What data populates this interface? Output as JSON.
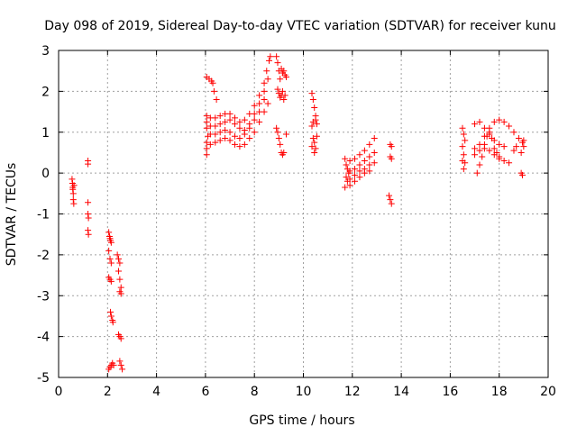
{
  "chart_data": {
    "type": "scatter",
    "title": "Day 098 of 2019, Sidereal Day-to-day VTEC variation (SDTVAR) for receiver kunu",
    "xlabel": "GPS time / hours",
    "ylabel": "SDTVAR / TECUs",
    "xlim": [
      0,
      20
    ],
    "ylim": [
      -5,
      3
    ],
    "xticks": [
      "0",
      "2",
      "4",
      "6",
      "8",
      "10",
      "12",
      "14",
      "16",
      "18",
      "20"
    ],
    "yticks": [
      "-5",
      "-4",
      "-3",
      "-2",
      "-1",
      "0",
      "1",
      "2",
      "3"
    ],
    "grid": true,
    "marker": "plus",
    "color": "#ff0000",
    "series": [
      {
        "name": "SDTVAR",
        "points": [
          [
            0.55,
            -0.15
          ],
          [
            0.57,
            -0.25
          ],
          [
            0.58,
            -0.35
          ],
          [
            0.6,
            -0.5
          ],
          [
            0.6,
            -0.65
          ],
          [
            0.62,
            -0.75
          ],
          [
            0.63,
            -0.3
          ],
          [
            0.58,
            -0.4
          ],
          [
            1.2,
            0.3
          ],
          [
            1.2,
            0.22
          ],
          [
            1.2,
            -0.72
          ],
          [
            1.2,
            -1.0
          ],
          [
            1.22,
            -1.1
          ],
          [
            1.2,
            -1.4
          ],
          [
            1.22,
            -1.5
          ],
          [
            2.05,
            -1.45
          ],
          [
            2.08,
            -1.55
          ],
          [
            2.1,
            -1.6
          ],
          [
            2.12,
            -1.65
          ],
          [
            2.15,
            -1.7
          ],
          [
            2.05,
            -1.9
          ],
          [
            2.1,
            -2.1
          ],
          [
            2.15,
            -2.2
          ],
          [
            2.05,
            -2.55
          ],
          [
            2.1,
            -2.6
          ],
          [
            2.15,
            -2.65
          ],
          [
            2.12,
            -3.4
          ],
          [
            2.15,
            -3.5
          ],
          [
            2.2,
            -3.6
          ],
          [
            2.22,
            -3.65
          ],
          [
            2.05,
            -4.8
          ],
          [
            2.1,
            -4.75
          ],
          [
            2.15,
            -4.7
          ],
          [
            2.2,
            -4.65
          ],
          [
            2.25,
            -4.7
          ],
          [
            2.4,
            -2.0
          ],
          [
            2.45,
            -2.1
          ],
          [
            2.5,
            -2.2
          ],
          [
            2.45,
            -2.4
          ],
          [
            2.5,
            -2.6
          ],
          [
            2.55,
            -2.8
          ],
          [
            2.5,
            -2.9
          ],
          [
            2.55,
            -2.95
          ],
          [
            2.45,
            -3.95
          ],
          [
            2.5,
            -4.0
          ],
          [
            2.55,
            -4.05
          ],
          [
            2.5,
            -4.6
          ],
          [
            2.55,
            -4.7
          ],
          [
            2.6,
            -4.8
          ],
          [
            6.05,
            2.35
          ],
          [
            6.15,
            2.3
          ],
          [
            6.25,
            2.25
          ],
          [
            6.3,
            2.2
          ],
          [
            6.35,
            2.0
          ],
          [
            6.45,
            1.8
          ],
          [
            6.05,
            1.4
          ],
          [
            6.05,
            1.25
          ],
          [
            6.05,
            1.1
          ],
          [
            6.1,
            0.9
          ],
          [
            6.05,
            0.75
          ],
          [
            6.05,
            0.6
          ],
          [
            6.05,
            0.45
          ],
          [
            6.2,
            1.35
          ],
          [
            6.4,
            1.35
          ],
          [
            6.6,
            1.4
          ],
          [
            6.8,
            1.45
          ],
          [
            7.0,
            1.45
          ],
          [
            7.2,
            1.35
          ],
          [
            7.4,
            1.25
          ],
          [
            7.6,
            1.3
          ],
          [
            7.8,
            1.45
          ],
          [
            8.0,
            1.65
          ],
          [
            8.2,
            1.9
          ],
          [
            8.4,
            2.2
          ],
          [
            8.5,
            2.5
          ],
          [
            8.6,
            2.75
          ],
          [
            8.65,
            2.85
          ],
          [
            6.2,
            1.15
          ],
          [
            6.4,
            1.15
          ],
          [
            6.6,
            1.2
          ],
          [
            6.8,
            1.25
          ],
          [
            7.0,
            1.3
          ],
          [
            7.2,
            1.2
          ],
          [
            7.4,
            1.1
          ],
          [
            7.6,
            1.05
          ],
          [
            7.8,
            1.2
          ],
          [
            8.0,
            1.45
          ],
          [
            8.2,
            1.7
          ],
          [
            8.4,
            2.0
          ],
          [
            8.55,
            2.3
          ],
          [
            6.2,
            0.95
          ],
          [
            6.4,
            0.95
          ],
          [
            6.6,
            1.0
          ],
          [
            6.8,
            1.05
          ],
          [
            7.0,
            1.0
          ],
          [
            7.2,
            0.9
          ],
          [
            7.4,
            0.85
          ],
          [
            7.6,
            0.95
          ],
          [
            7.8,
            1.1
          ],
          [
            8.0,
            1.3
          ],
          [
            8.2,
            1.5
          ],
          [
            8.4,
            1.8
          ],
          [
            6.2,
            0.7
          ],
          [
            6.4,
            0.75
          ],
          [
            6.6,
            0.8
          ],
          [
            6.8,
            0.85
          ],
          [
            7.0,
            0.8
          ],
          [
            7.2,
            0.7
          ],
          [
            7.4,
            0.65
          ],
          [
            7.6,
            0.7
          ],
          [
            7.8,
            0.85
          ],
          [
            8.0,
            1.0
          ],
          [
            8.2,
            1.25
          ],
          [
            8.4,
            1.5
          ],
          [
            8.55,
            1.7
          ],
          [
            8.9,
            2.85
          ],
          [
            8.95,
            2.7
          ],
          [
            9.0,
            2.5
          ],
          [
            9.05,
            2.3
          ],
          [
            9.1,
            2.55
          ],
          [
            9.15,
            2.45
          ],
          [
            9.2,
            2.5
          ],
          [
            9.25,
            2.4
          ],
          [
            9.3,
            2.35
          ],
          [
            8.95,
            2.05
          ],
          [
            9.0,
            1.95
          ],
          [
            9.05,
            1.85
          ],
          [
            9.1,
            1.9
          ],
          [
            9.15,
            2.0
          ],
          [
            9.2,
            1.8
          ],
          [
            9.25,
            1.9
          ],
          [
            8.9,
            1.1
          ],
          [
            8.95,
            1.0
          ],
          [
            9.0,
            0.85
          ],
          [
            9.05,
            0.7
          ],
          [
            9.1,
            0.5
          ],
          [
            9.15,
            0.45
          ],
          [
            9.2,
            0.5
          ],
          [
            9.3,
            0.95
          ],
          [
            10.35,
            1.95
          ],
          [
            10.4,
            1.8
          ],
          [
            10.45,
            1.6
          ],
          [
            10.5,
            1.4
          ],
          [
            10.55,
            1.2
          ],
          [
            10.35,
            1.15
          ],
          [
            10.4,
            1.25
          ],
          [
            10.5,
            1.3
          ],
          [
            10.4,
            0.85
          ],
          [
            10.45,
            0.75
          ],
          [
            10.5,
            0.6
          ],
          [
            10.45,
            0.5
          ],
          [
            10.35,
            0.65
          ],
          [
            10.55,
            0.9
          ],
          [
            11.7,
            0.35
          ],
          [
            11.75,
            0.2
          ],
          [
            11.8,
            0.1
          ],
          [
            11.85,
            0.0
          ],
          [
            11.75,
            -0.1
          ],
          [
            11.8,
            -0.2
          ],
          [
            11.7,
            -0.35
          ],
          [
            11.9,
            0.3
          ],
          [
            12.1,
            0.35
          ],
          [
            12.3,
            0.45
          ],
          [
            12.5,
            0.55
          ],
          [
            12.7,
            0.7
          ],
          [
            12.9,
            0.85
          ],
          [
            11.9,
            0.05
          ],
          [
            12.1,
            0.1
          ],
          [
            12.3,
            0.2
          ],
          [
            12.5,
            0.3
          ],
          [
            12.7,
            0.4
          ],
          [
            12.9,
            0.5
          ],
          [
            11.9,
            -0.15
          ],
          [
            12.1,
            -0.05
          ],
          [
            12.3,
            0.05
          ],
          [
            12.5,
            0.1
          ],
          [
            12.7,
            0.2
          ],
          [
            12.9,
            0.25
          ],
          [
            11.9,
            -0.3
          ],
          [
            12.1,
            -0.2
          ],
          [
            12.3,
            -0.1
          ],
          [
            12.5,
            0.0
          ],
          [
            12.7,
            0.05
          ],
          [
            13.55,
            0.7
          ],
          [
            13.6,
            0.65
          ],
          [
            13.55,
            0.4
          ],
          [
            13.6,
            0.35
          ],
          [
            13.5,
            -0.55
          ],
          [
            13.55,
            -0.65
          ],
          [
            13.6,
            -0.75
          ],
          [
            16.5,
            1.1
          ],
          [
            16.55,
            0.95
          ],
          [
            16.6,
            0.8
          ],
          [
            16.5,
            0.65
          ],
          [
            16.55,
            0.45
          ],
          [
            16.5,
            0.3
          ],
          [
            16.6,
            0.25
          ],
          [
            16.55,
            0.1
          ],
          [
            17.0,
            1.2
          ],
          [
            17.2,
            1.25
          ],
          [
            17.4,
            1.1
          ],
          [
            17.6,
            0.95
          ],
          [
            17.8,
            0.8
          ],
          [
            18.0,
            0.7
          ],
          [
            18.2,
            0.65
          ],
          [
            17.0,
            0.6
          ],
          [
            17.2,
            0.7
          ],
          [
            17.4,
            0.9
          ],
          [
            17.6,
            1.1
          ],
          [
            17.8,
            1.25
          ],
          [
            18.0,
            1.3
          ],
          [
            18.2,
            1.25
          ],
          [
            18.4,
            1.15
          ],
          [
            18.6,
            1.0
          ],
          [
            18.8,
            0.85
          ],
          [
            18.95,
            0.75
          ],
          [
            17.0,
            0.45
          ],
          [
            17.2,
            0.55
          ],
          [
            17.4,
            0.6
          ],
          [
            17.6,
            0.55
          ],
          [
            17.8,
            0.45
          ],
          [
            18.0,
            0.35
          ],
          [
            18.2,
            0.3
          ],
          [
            18.4,
            0.25
          ],
          [
            17.1,
            0.0
          ],
          [
            17.2,
            0.2
          ],
          [
            17.3,
            0.4
          ],
          [
            17.4,
            0.7
          ],
          [
            17.5,
            0.9
          ],
          [
            17.6,
            1.0
          ],
          [
            17.7,
            0.85
          ],
          [
            17.8,
            0.6
          ],
          [
            17.9,
            0.5
          ],
          [
            18.0,
            0.4
          ],
          [
            18.9,
            0.0
          ],
          [
            18.95,
            -0.05
          ],
          [
            19.0,
            0.8
          ],
          [
            19.0,
            0.65
          ],
          [
            18.9,
            0.5
          ],
          [
            18.6,
            0.55
          ],
          [
            18.7,
            0.65
          ]
        ]
      }
    ]
  }
}
